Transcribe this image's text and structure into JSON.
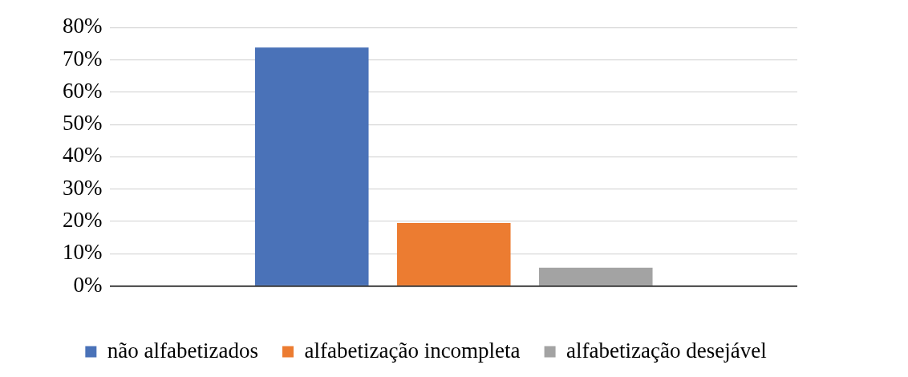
{
  "chart_data": {
    "type": "bar",
    "categories": [
      null
    ],
    "series": [
      {
        "name": "não alfabetizados",
        "color": "#4a72b8",
        "values": [
          73.8
        ]
      },
      {
        "name": "alfabetização incompleta",
        "color": "#ec7c31",
        "values": [
          19.5
        ]
      },
      {
        "name": "alfabetização desejável",
        "color": "#a3a3a3",
        "values": [
          5.7
        ]
      }
    ],
    "ylim": [
      0,
      80
    ],
    "yticks": [
      {
        "value": 0,
        "label": "0%"
      },
      {
        "value": 10,
        "label": "10%"
      },
      {
        "value": 20,
        "label": "20%"
      },
      {
        "value": 30,
        "label": "30%"
      },
      {
        "value": 40,
        "label": "40%"
      },
      {
        "value": 50,
        "label": "50%"
      },
      {
        "value": 60,
        "label": "60%"
      },
      {
        "value": 70,
        "label": "70%"
      },
      {
        "value": 80,
        "label": "80%"
      }
    ],
    "grid": "y",
    "legend": "bottom"
  }
}
